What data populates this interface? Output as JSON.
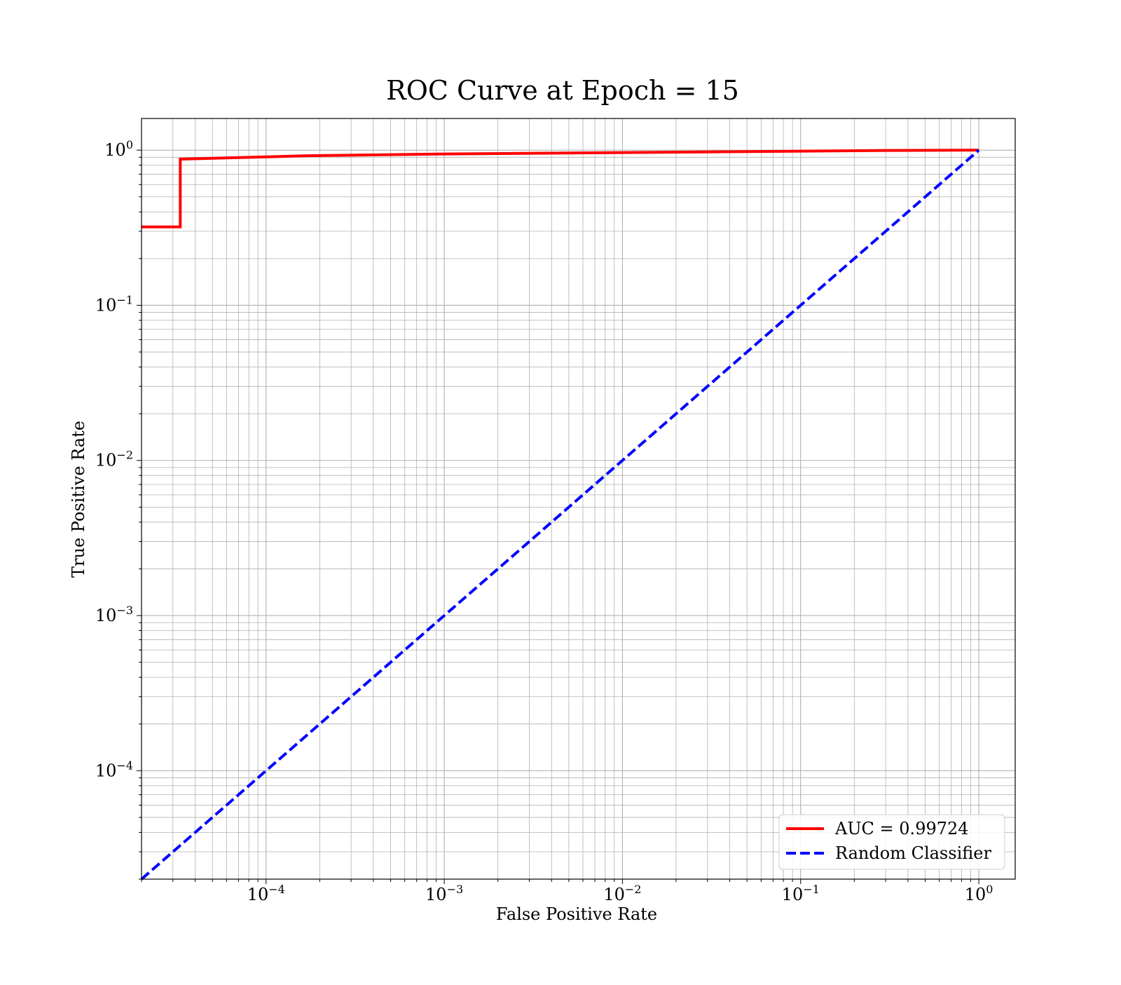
{
  "chart_data": {
    "type": "line",
    "title": "ROC Curve at Epoch = 15",
    "xlabel": "False Positive Rate",
    "ylabel": "True Positive Rate",
    "xscale": "log",
    "yscale": "log",
    "xlim": [
      2e-05,
      1.6
    ],
    "ylim": [
      2e-05,
      1.6
    ],
    "grid": "major and minor",
    "legend_position": "lower-right",
    "x_ticks": [
      {
        "value": 0.0001,
        "base": "10",
        "exp": "−4"
      },
      {
        "value": 0.001,
        "base": "10",
        "exp": "−3"
      },
      {
        "value": 0.01,
        "base": "10",
        "exp": "−2"
      },
      {
        "value": 0.1,
        "base": "10",
        "exp": "−1"
      },
      {
        "value": 1,
        "base": "10",
        "exp": "0"
      }
    ],
    "y_ticks": [
      {
        "value": 0.0001,
        "base": "10",
        "exp": "−4"
      },
      {
        "value": 0.001,
        "base": "10",
        "exp": "−3"
      },
      {
        "value": 0.01,
        "base": "10",
        "exp": "−2"
      },
      {
        "value": 0.1,
        "base": "10",
        "exp": "−1"
      },
      {
        "value": 1,
        "base": "10",
        "exp": "0"
      }
    ],
    "series": [
      {
        "name": "AUC = 0.99724",
        "color": "#ff0000",
        "style": "solid",
        "x": [
          2e-05,
          3.3e-05,
          3.3e-05,
          0.0001,
          0.00017,
          0.0005,
          0.001,
          0.01,
          0.1,
          0.3,
          1
        ],
        "y": [
          0.32,
          0.32,
          0.875,
          0.905,
          0.92,
          0.935,
          0.945,
          0.965,
          0.985,
          0.995,
          1.0
        ]
      },
      {
        "name": "Random Classifier",
        "color": "#0000ff",
        "style": "dashed",
        "x": [
          2e-05,
          1
        ],
        "y": [
          2e-05,
          1
        ]
      }
    ]
  }
}
